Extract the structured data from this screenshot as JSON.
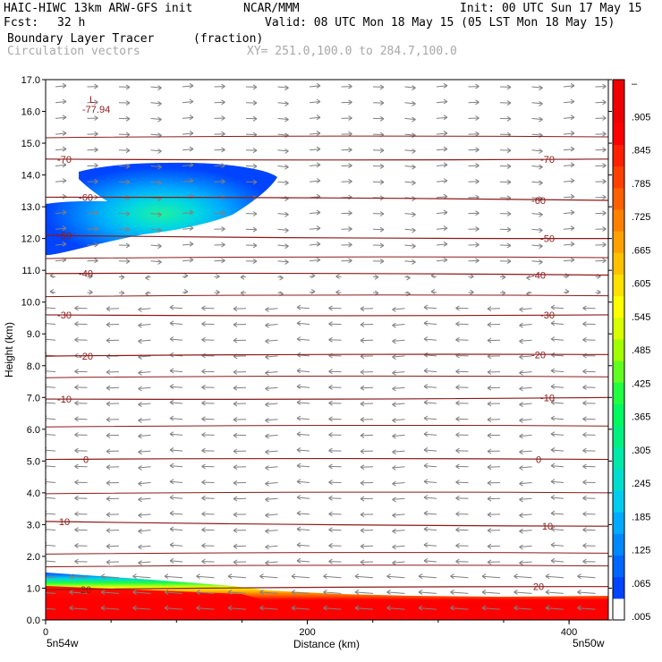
{
  "header": {
    "model": "HAIC-HIWC 13km ARW-GFS init",
    "org": "NCAR/MMM",
    "init": "Init: 00 UTC Sun 17 May 15",
    "fcst_label": "Fcst:",
    "fcst_value": "32 h",
    "valid": "Valid: 08 UTC Mon 18 May 15 (05 LST Mon 18 May 15)",
    "field": "Boundary Layer Tracer",
    "units": "(fraction)",
    "vectors": "Circulation vectors",
    "xy": "XY= 251.0,100.0 to 284.7,100.0"
  },
  "colors": {
    "contour": "#8b1a1a",
    "vector": "#808080",
    "colorbar": [
      "#ffffff",
      "#0044ff",
      "#0066ff",
      "#0088ff",
      "#00aaff",
      "#00ccee",
      "#00ddcc",
      "#00e8aa",
      "#00f080",
      "#00f860",
      "#20ff40",
      "#60ff20",
      "#a0ff00",
      "#d8ff00",
      "#ffff00",
      "#ffe000",
      "#ffc000",
      "#ffa000",
      "#ff8000",
      "#ff6000",
      "#ff4000",
      "#ff2000",
      "#ff0000",
      "#ee0000",
      "#ee0000"
    ]
  },
  "chart_data": {
    "type": "heatmap",
    "title": "Boundary Layer Tracer (fraction)",
    "overlay": "Circulation vectors",
    "xlabel": "Distance (km)",
    "ylabel": "Height (km)",
    "xlim": [
      0,
      430
    ],
    "ylim": [
      0.0,
      17.0
    ],
    "x_ticks": [
      "0",
      "200",
      "400"
    ],
    "x_end_labels": [
      "5n54w",
      "5n50w"
    ],
    "y_ticks": [
      "0.0",
      "1.0",
      "2.0",
      "3.0",
      "4.0",
      "5.0",
      "6.0",
      "7.0",
      "8.0",
      "9.0",
      "10.0",
      "11.0",
      "12.0",
      "13.0",
      "14.0",
      "15.0",
      "16.0",
      "17.0"
    ],
    "colorbar_labels": [
      ".005",
      ".065",
      ".125",
      ".185",
      ".245",
      ".305",
      ".365",
      ".425",
      ".485",
      ".545",
      ".605",
      ".665",
      ".725",
      ".785",
      ".845",
      ".905",
      "–"
    ],
    "min_label": "L",
    "min_value": "-77.94",
    "contour_levels": [
      {
        "label": "-70",
        "y_left": 14.5,
        "y_right": 14.5
      },
      {
        "label": "-60",
        "y_left": 13.3,
        "y_right": 13.2
      },
      {
        "label": "-50",
        "y_left": 12.1,
        "y_right": 12.0
      },
      {
        "label": "-40",
        "y_left": 10.9,
        "y_right": 10.85
      },
      {
        "label": "-30",
        "y_left": 9.6,
        "y_right": 9.6
      },
      {
        "label": "-20",
        "y_left": 8.3,
        "y_right": 8.35
      },
      {
        "label": "-10",
        "y_left": 6.95,
        "y_right": 7.0
      },
      {
        "label": "0",
        "y_left": 5.05,
        "y_right": 5.05
      },
      {
        "label": "10",
        "y_left": 3.1,
        "y_right": 2.95
      },
      {
        "label": "20",
        "y_left": 0.95,
        "y_right": 1.05
      }
    ],
    "label_text_left": [
      "-70",
      "-60",
      "-50",
      "-40",
      "-30",
      "-20",
      "-10",
      "0",
      "10",
      "20"
    ],
    "label_text_right": [
      "-70",
      "-60",
      "-50",
      "-40",
      "-30",
      "-20",
      "-10",
      "0",
      "10",
      "20"
    ]
  }
}
